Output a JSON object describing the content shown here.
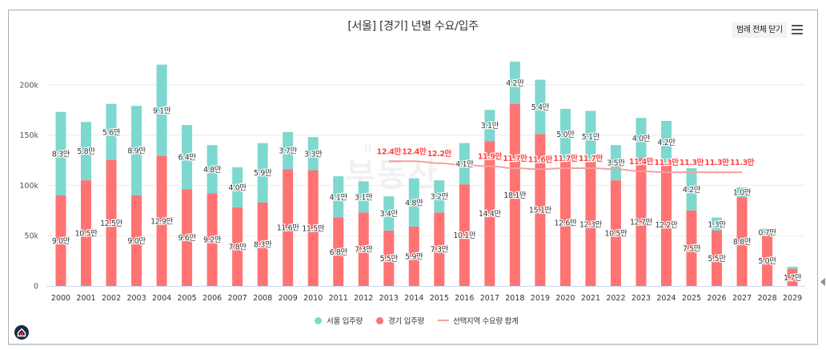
{
  "title": "[서울] [경기] 년별 수요/입주",
  "controls": {
    "legend_toggle_label": "범례 전체 닫기",
    "menu_icon": "hamburger-menu-icon"
  },
  "watermark": {
    "top": "BIGDATA",
    "bottom": "부동산"
  },
  "colors": {
    "seoul": "#7dd8cf",
    "gyeonggi": "#ff7373",
    "demand_line": "#f5a0a0",
    "demand_label": "#ff4444",
    "grid": "#ececec",
    "axis": "#ccd6eb"
  },
  "legend": [
    {
      "label": "서울 입주량",
      "marker": "circle",
      "color": "#7dd8cf"
    },
    {
      "label": "경기 입주량",
      "marker": "circle",
      "color": "#ff7373"
    },
    {
      "label": "선택지역 수요량 합계",
      "marker": "line",
      "color": "#f5a0a0"
    }
  ],
  "chart_data": {
    "type": "bar",
    "stacked": true,
    "title": "[서울] [경기] 년별 수요/입주",
    "unit": "만 (10,000 units)",
    "xlabel": "",
    "ylabel": "",
    "ylim": [
      0,
      23
    ],
    "grid": true,
    "legend_position": "bottom",
    "yticks": [
      {
        "value": 0,
        "label": "0"
      },
      {
        "value": 5,
        "label": "50k"
      },
      {
        "value": 10,
        "label": "100k"
      },
      {
        "value": 15,
        "label": "150k"
      },
      {
        "value": 20,
        "label": "200k"
      }
    ],
    "categories": [
      "2000",
      "2001",
      "2002",
      "2003",
      "2004",
      "2005",
      "2006",
      "2007",
      "2008",
      "2009",
      "2010",
      "2011",
      "2012",
      "2013",
      "2014",
      "2015",
      "2016",
      "2017",
      "2018",
      "2019",
      "2020",
      "2021",
      "2022",
      "2023",
      "2024",
      "2025",
      "2026",
      "2027",
      "2028",
      "2029"
    ],
    "series": [
      {
        "name": "경기 입주량",
        "type": "bar",
        "stack_order": 0,
        "color": "#ff7373",
        "values": [
          9.0,
          10.5,
          12.5,
          9.0,
          12.9,
          9.6,
          9.2,
          7.8,
          8.3,
          11.6,
          11.5,
          6.8,
          7.3,
          5.5,
          5.9,
          7.3,
          10.1,
          14.4,
          18.1,
          15.1,
          12.6,
          12.3,
          10.5,
          12.7,
          12.2,
          7.5,
          5.5,
          8.8,
          5.0,
          1.7
        ],
        "labels": [
          "9.0만",
          "10.5만",
          "12.5만",
          "9.0만",
          "12.9만",
          "9.6만",
          "9.2만",
          "7.8만",
          "8.3만",
          "11.6만",
          "11.5만",
          "6.8만",
          "7.3만",
          "5.5만",
          "5.9만",
          "7.3만",
          "10.1만",
          "14.4만",
          "18.1만",
          "15.1만",
          "12.6만",
          "12.3만",
          "10.5만",
          "12.7만",
          "12.2만",
          "7.5만",
          "5.5만",
          "8.8만",
          "5.0만",
          "1.7만"
        ]
      },
      {
        "name": "서울 입주량",
        "type": "bar",
        "stack_order": 1,
        "color": "#7dd8cf",
        "values": [
          8.3,
          5.8,
          5.6,
          8.9,
          9.1,
          6.4,
          4.8,
          4.0,
          5.9,
          3.7,
          3.3,
          4.1,
          3.1,
          3.4,
          4.8,
          3.2,
          4.1,
          3.1,
          4.2,
          5.4,
          5.0,
          5.1,
          3.5,
          4.0,
          4.2,
          4.2,
          1.3,
          1.0,
          0.7,
          0.2
        ],
        "labels": [
          "8.3만",
          "5.8만",
          "5.6만",
          "8.9만",
          "9.1만",
          "6.4만",
          "4.8만",
          "4.0만",
          "5.9만",
          "3.7만",
          "3.3만",
          "4.1만",
          "3.1만",
          "3.4만",
          "4.8만",
          "3.2만",
          "4.1만",
          "3.1만",
          "4.2만",
          "5.4만",
          "5.0만",
          "5.1만",
          "3.5만",
          "4.0만",
          "4.2만",
          "4.2만",
          "1.3만",
          "1.0만",
          "0.7만",
          null
        ]
      },
      {
        "name": "선택지역 수요량 합계",
        "type": "line",
        "color": "#f5a0a0",
        "values": [
          null,
          null,
          null,
          null,
          null,
          null,
          null,
          null,
          null,
          null,
          null,
          null,
          null,
          12.4,
          12.4,
          12.2,
          12.0,
          11.9,
          11.7,
          11.6,
          11.7,
          11.7,
          11.6,
          11.4,
          11.3,
          11.3,
          11.3,
          11.3,
          null,
          null
        ],
        "labels": [
          null,
          null,
          null,
          null,
          null,
          null,
          null,
          null,
          null,
          null,
          null,
          null,
          null,
          "12.4만",
          "12.4만",
          "12.2만",
          null,
          "11.9만",
          "11.7만",
          "11.6만",
          "11.7만",
          "11.7만",
          null,
          "11.4만",
          "11.3만",
          "11.3만",
          "11.3만",
          "11.3만",
          null,
          null
        ]
      }
    ]
  }
}
